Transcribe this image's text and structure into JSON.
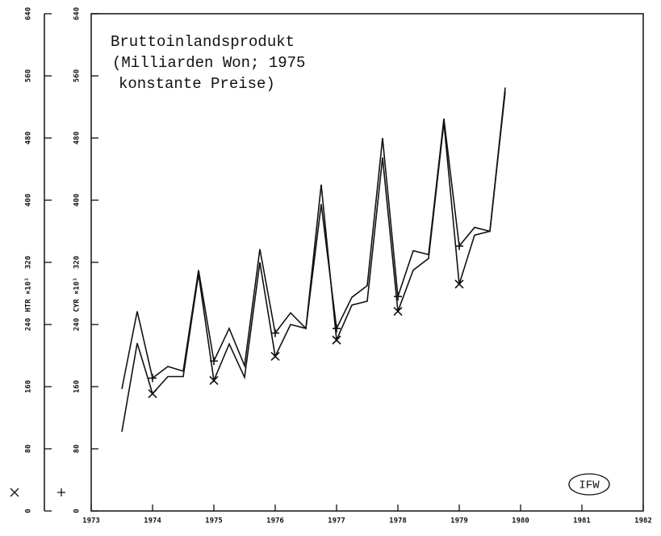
{
  "chart_data": {
    "type": "line",
    "title": [
      "Bruttoinlandsprodukt",
      "(Milliarden Won; 1975",
      "konstante Preise)"
    ],
    "y_label": "HTR  ×10¹",
    "y2_label": "CYR  ×10¹",
    "annotation": "IFW",
    "x": [
      1973.5,
      1973.75,
      1974,
      1974.25,
      1974.5,
      1974.75,
      1975,
      1975.25,
      1975.5,
      1975.75,
      1976,
      1976.25,
      1976.5,
      1976.75,
      1977,
      1977.25,
      1977.5,
      1977.75,
      1978,
      1978.25,
      1978.5,
      1978.75,
      1979,
      1979.25,
      1979.5,
      1979.75
    ],
    "series": [
      {
        "marker": "×",
        "color": "#111111",
        "values": [
          102,
          216,
          151,
          173,
          173,
          305,
          168,
          215,
          172,
          320,
          199,
          240,
          235,
          420,
          220,
          265,
          270,
          455,
          257,
          310,
          325,
          500,
          292,
          355,
          360,
          540
        ]
      },
      {
        "marker": "+",
        "color": "#111111",
        "axis": "y2",
        "values": [
          157,
          257,
          171,
          186,
          180,
          310,
          193,
          235,
          187,
          337,
          229,
          255,
          235,
          395,
          235,
          275,
          290,
          480,
          276,
          335,
          330,
          505,
          341,
          365,
          360,
          545
        ]
      }
    ],
    "xlim": [
      1973,
      1982
    ],
    "xticks": [
      1973,
      1974,
      1975,
      1976,
      1977,
      1978,
      1979,
      1980,
      1981,
      1982
    ],
    "ylim": [
      0,
      640
    ],
    "yticks": [
      0,
      80,
      160,
      240,
      320,
      400,
      480,
      560,
      640
    ],
    "y2lim": [
      0,
      640
    ],
    "y2ticks": [
      0,
      80,
      160,
      240,
      320,
      400,
      480,
      560,
      640
    ]
  }
}
